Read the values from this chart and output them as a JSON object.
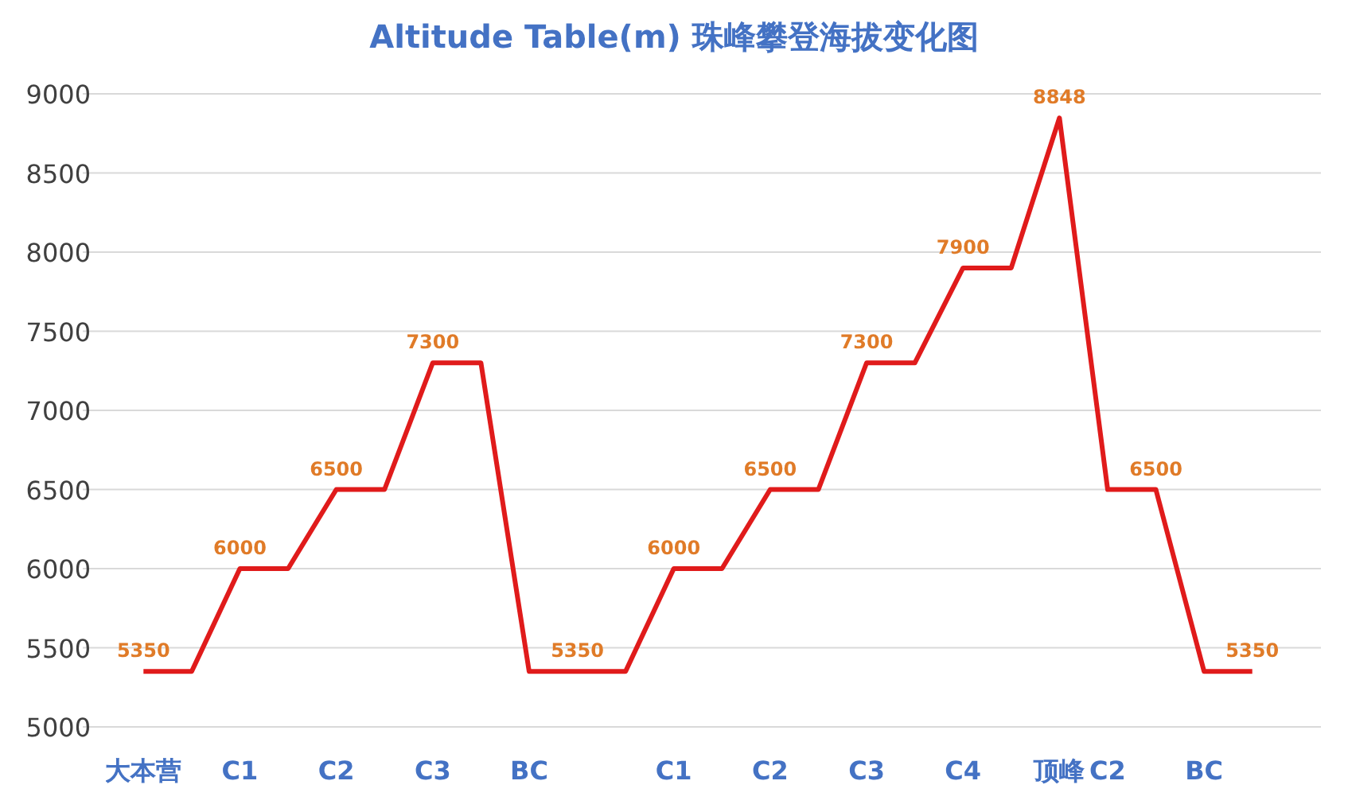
{
  "chart_data": {
    "type": "line",
    "title": "Altitude Table(m) 珠峰攀登海拔变化图",
    "categories": [
      "大本营",
      null,
      "C1",
      null,
      "C2",
      null,
      "C3",
      null,
      "BC",
      null,
      null,
      "C1",
      null,
      "C2",
      null,
      "C3",
      null,
      "C4",
      null,
      "顶峰",
      "C2",
      null,
      "BC",
      null
    ],
    "series": [
      {
        "color": "#e01b1b",
        "values": [
          5350,
          5350,
          6000,
          6000,
          6500,
          6500,
          7300,
          7300,
          5350,
          5350,
          5350,
          6000,
          6000,
          6500,
          6500,
          7300,
          7300,
          7900,
          7900,
          8848,
          6500,
          6500,
          5350,
          5350
        ],
        "value_labels": [
          "5350",
          null,
          "6000",
          null,
          "6500",
          null,
          "7300",
          null,
          null,
          "5350",
          null,
          "6000",
          null,
          "6500",
          null,
          "7300",
          null,
          "7900",
          null,
          "8848",
          null,
          "6500",
          null,
          "5350"
        ]
      }
    ],
    "ylim": [
      5000,
      9000
    ],
    "yticks": [
      5000,
      5500,
      6000,
      6500,
      7000,
      7500,
      8000,
      8500,
      9000
    ],
    "grid": "y"
  }
}
